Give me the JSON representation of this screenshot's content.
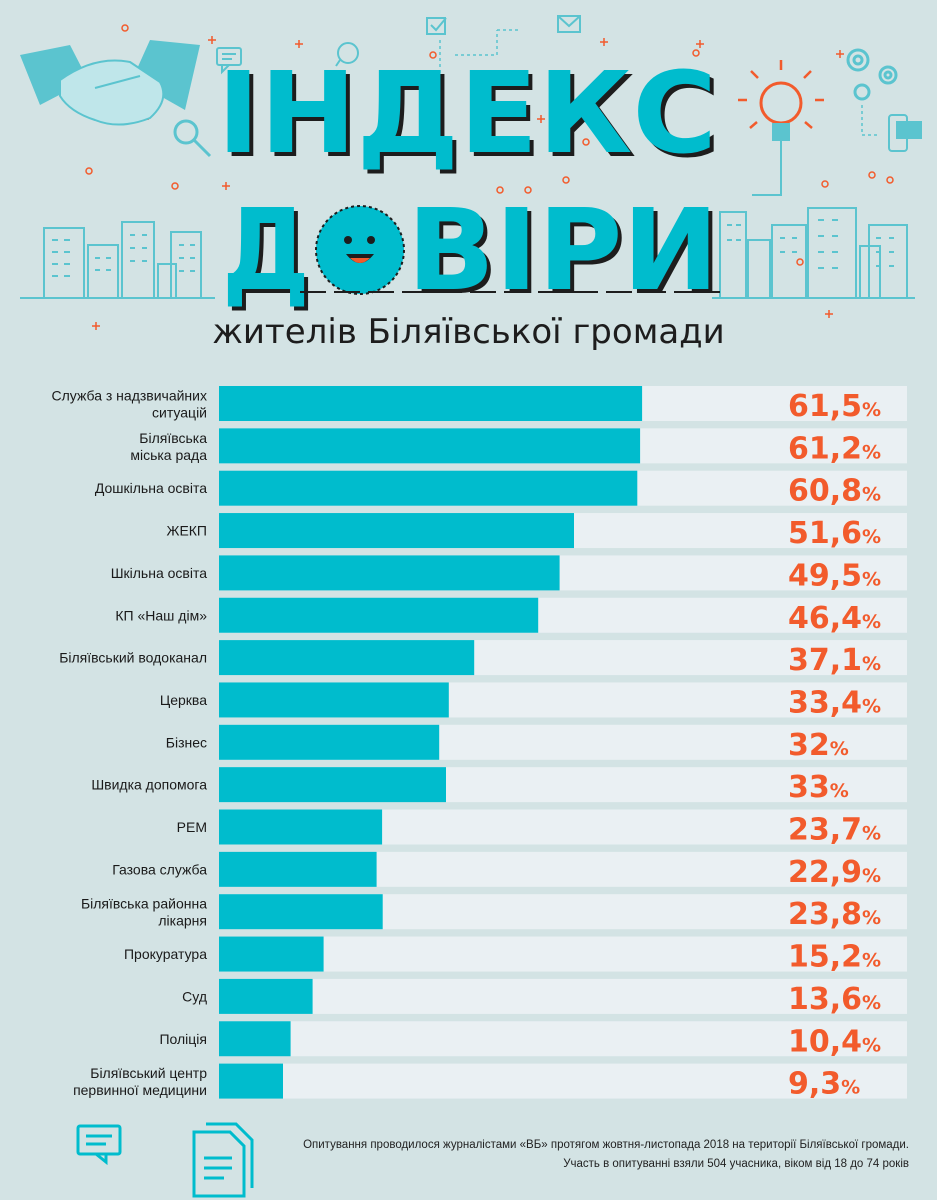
{
  "title": {
    "line1": "ІНДЕКС",
    "line2_prefix": "Д",
    "line2_suffix": "ВІРИ",
    "subtitle": "жителів Біляївської громади"
  },
  "colors": {
    "bar": "#00bccd",
    "track": "#eaf0f3",
    "value": "#f25b2c",
    "background": "#d3e3e4",
    "accent_dark": "#1d1d1d"
  },
  "chart_data": {
    "type": "bar",
    "orientation": "horizontal",
    "title": "ІНДЕКС ДОВІРИ жителів Біляївської громади",
    "unit": "%",
    "xlim": [
      0,
      100
    ],
    "categories": [
      "Служба з надзвичайних ситуацій",
      "Біляївська міська рада",
      "Дошкільна освіта",
      "ЖЕКП",
      "Шкільна освіта",
      "КП «Наш дім»",
      "Біляївський водоканал",
      "Церква",
      "Бізнес",
      "Швидка допомога",
      "РЕМ",
      "Газова служба",
      "Біляївська районна лікарня",
      "Прокуратура",
      "Суд",
      "Поліція",
      "Біляївський центр первинної медицини"
    ],
    "category_lines": [
      [
        "Служба з надзвичайних",
        "ситуацій"
      ],
      [
        "Біляївська",
        "міська рада"
      ],
      [
        "Дошкільна освіта"
      ],
      [
        "ЖЕКП"
      ],
      [
        "Шкільна освіта"
      ],
      [
        "КП «Наш дім»"
      ],
      [
        "Біляївський водоканал"
      ],
      [
        "Церква"
      ],
      [
        "Бізнес"
      ],
      [
        "Швидка допомога"
      ],
      [
        "РЕМ"
      ],
      [
        "Газова служба"
      ],
      [
        "Біляївська районна",
        "лікарня"
      ],
      [
        "Прокуратура"
      ],
      [
        "Суд"
      ],
      [
        "Поліція"
      ],
      [
        "Біляївський центр",
        "первинної медицини"
      ]
    ],
    "values": [
      61.5,
      61.2,
      60.8,
      51.6,
      49.5,
      46.4,
      37.1,
      33.4,
      32,
      33,
      23.7,
      22.9,
      23.8,
      15.2,
      13.6,
      10.4,
      9.3
    ],
    "value_labels": [
      "61,5",
      "61,2",
      "60,8",
      "51,6",
      "49,5",
      "46,4",
      "37,1",
      "33,4",
      "32",
      "33",
      "23,7",
      "22,9",
      "23,8",
      "15,2",
      "13,6",
      "10,4",
      "9,3"
    ]
  },
  "footnote": {
    "line1": "Опитування проводилося журналістами «ВБ» протягом жовтня-листопада 2018 на території Біляївської громади.",
    "line2": "Участь в опитуванні взяли 504 учасника, віком від 18 до 74 років"
  }
}
